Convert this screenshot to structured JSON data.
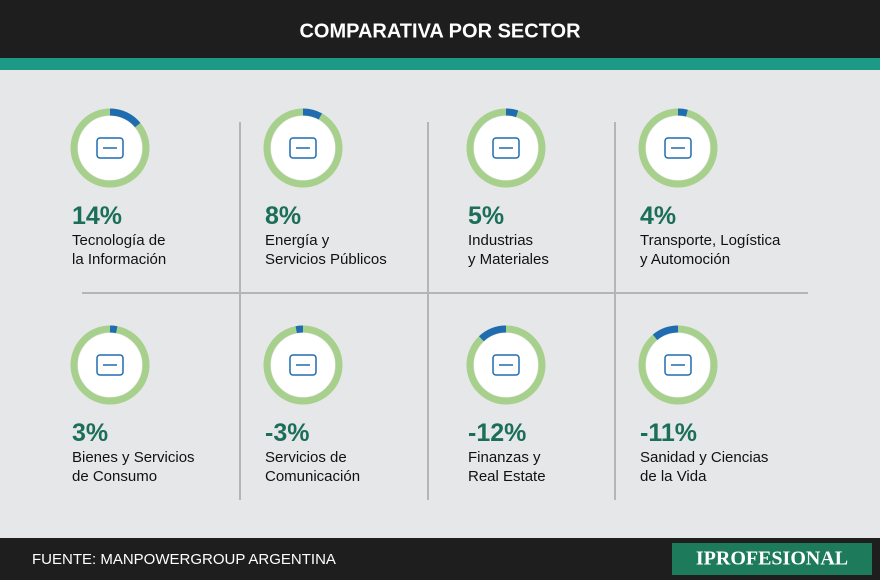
{
  "header": {
    "title": "COMPARATIVA POR SECTOR"
  },
  "sectors": [
    {
      "value": 14,
      "value_label": "14%",
      "label": [
        "Tecnología de",
        "la Información"
      ]
    },
    {
      "value": 8,
      "value_label": "8%",
      "label": [
        "Energía y",
        "Servicios Públicos"
      ]
    },
    {
      "value": 5,
      "value_label": "5%",
      "label": [
        "Industrias",
        "y Materiales"
      ]
    },
    {
      "value": 4,
      "value_label": "4%",
      "label": [
        "Transporte, Logística",
        "y Automoción"
      ]
    },
    {
      "value": 3,
      "value_label": "3%",
      "label": [
        "Bienes y Servicios",
        "de Consumo"
      ]
    },
    {
      "value": -3,
      "value_label": "-3%",
      "label": [
        "Servicios de",
        "Comunicación"
      ]
    },
    {
      "value": -12,
      "value_label": "-12%",
      "label": [
        "Finanzas y",
        "Real Estate"
      ]
    },
    {
      "value": -11,
      "value_label": "-11%",
      "label": [
        "Sanidad y Ciencias",
        "de la Vida"
      ]
    }
  ],
  "footer": {
    "source": "FUENTE: MANPOWERGROUP ARGENTINA",
    "brand": "IPROFESIONAL"
  }
}
